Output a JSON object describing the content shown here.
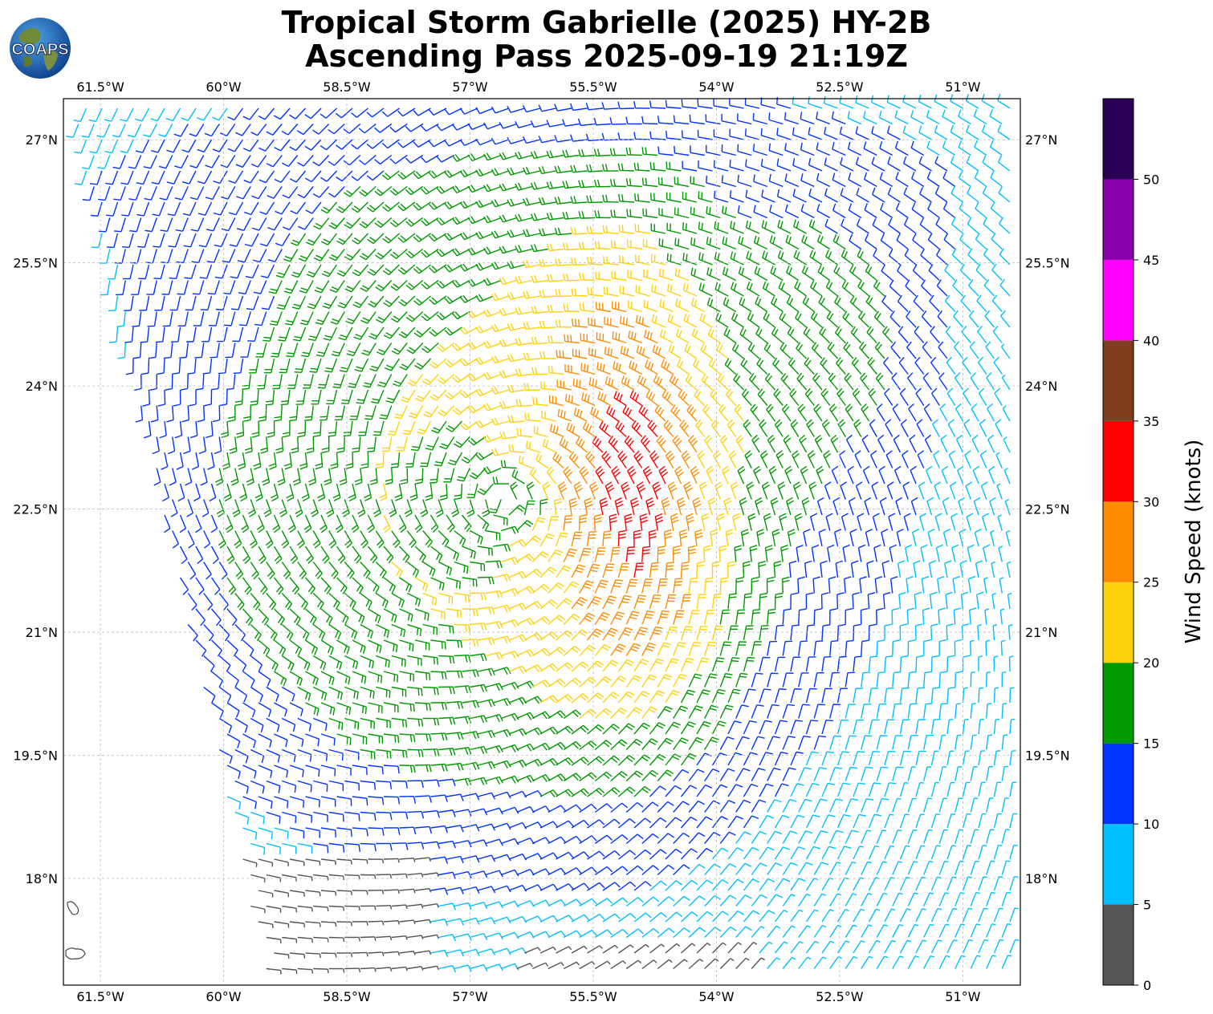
{
  "title": {
    "line1": "Tropical Storm Gabrielle (2025) HY-2B",
    "line2": "Ascending Pass 2025-09-19 21:19Z"
  },
  "logo": {
    "text": "COAPS",
    "icon": "globe-logo-icon"
  },
  "map": {
    "lon_range": [
      -61.95,
      -50.3
    ],
    "lat_range": [
      16.7,
      27.5
    ],
    "lon_ticks": [
      {
        "value": -61.5,
        "label": "61.5°W"
      },
      {
        "value": -60.0,
        "label": "60°W"
      },
      {
        "value": -58.5,
        "label": "58.5°W"
      },
      {
        "value": -57.0,
        "label": "57°W"
      },
      {
        "value": -55.5,
        "label": "55.5°W"
      },
      {
        "value": -54.0,
        "label": "54°W"
      },
      {
        "value": -52.5,
        "label": "52.5°W"
      },
      {
        "value": -51.0,
        "label": "51°W"
      }
    ],
    "lat_ticks": [
      {
        "value": 27.0,
        "label": "27°N"
      },
      {
        "value": 25.5,
        "label": "25.5°N"
      },
      {
        "value": 24.0,
        "label": "24°N"
      },
      {
        "value": 22.5,
        "label": "22.5°N"
      },
      {
        "value": 21.0,
        "label": "21°N"
      },
      {
        "value": 19.5,
        "label": "19.5°N"
      },
      {
        "value": 18.0,
        "label": "18°N"
      }
    ],
    "grid": true,
    "storm_center": {
      "lon": -56.6,
      "lat": 22.6
    },
    "max_wind_lon": -55.0
  },
  "colorbar": {
    "title": "Wind Speed (knots)",
    "bins": [
      {
        "min": 0,
        "max": 5,
        "color": "#555555"
      },
      {
        "min": 5,
        "max": 10,
        "color": "#00bfff"
      },
      {
        "min": 10,
        "max": 15,
        "color": "#0033ff"
      },
      {
        "min": 15,
        "max": 20,
        "color": "#009900"
      },
      {
        "min": 20,
        "max": 25,
        "color": "#ffd20f"
      },
      {
        "min": 25,
        "max": 30,
        "color": "#ff8c00"
      },
      {
        "min": 30,
        "max": 35,
        "color": "#ff0000"
      },
      {
        "min": 35,
        "max": 40,
        "color": "#803c1e"
      },
      {
        "min": 40,
        "max": 45,
        "color": "#ff00ff"
      },
      {
        "min": 45,
        "max": 50,
        "color": "#8800aa"
      },
      {
        "min": 50,
        "max": 55,
        "color": "#2a0055"
      }
    ],
    "tick_labels": [
      "0",
      "5",
      "10",
      "15",
      "20",
      "25",
      "30",
      "35",
      "40",
      "45",
      "50"
    ]
  }
}
